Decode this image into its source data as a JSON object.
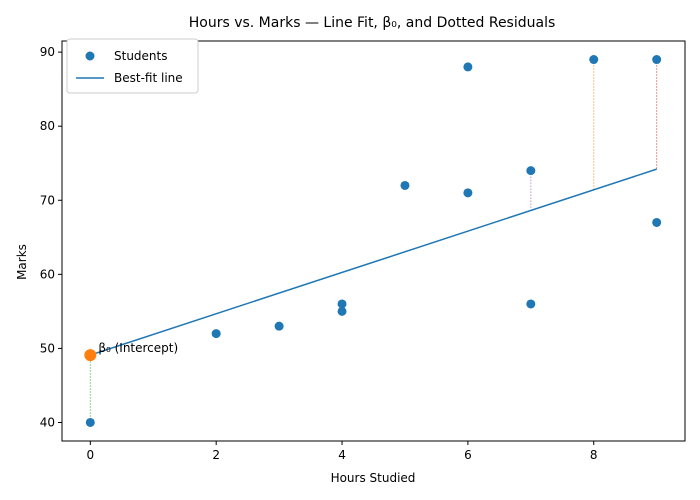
{
  "chart_data": {
    "type": "scatter",
    "title": "Hours vs. Marks — Line Fit, β₀, and Dotted Residuals",
    "xlabel": "Hours Studied",
    "ylabel": "Marks",
    "xlim": [
      -0.45,
      9.45
    ],
    "ylim": [
      37.5,
      91.5
    ],
    "xticks": [
      0,
      2,
      4,
      6,
      8
    ],
    "yticks": [
      40,
      50,
      60,
      70,
      80,
      90
    ],
    "grid": false,
    "legend_position": "top-left",
    "series": [
      {
        "name": "Students",
        "kind": "scatter",
        "color": "#1f77b4",
        "points": [
          {
            "x": 0,
            "y": 40
          },
          {
            "x": 2,
            "y": 52
          },
          {
            "x": 3,
            "y": 53
          },
          {
            "x": 4,
            "y": 56
          },
          {
            "x": 4,
            "y": 55
          },
          {
            "x": 5,
            "y": 72
          },
          {
            "x": 6,
            "y": 88
          },
          {
            "x": 6,
            "y": 71
          },
          {
            "x": 7,
            "y": 74
          },
          {
            "x": 7,
            "y": 56
          },
          {
            "x": 8,
            "y": 89
          },
          {
            "x": 9,
            "y": 89
          },
          {
            "x": 9,
            "y": 67
          }
        ]
      },
      {
        "name": "Best-fit line",
        "kind": "line",
        "color": "#1f77b4",
        "points": [
          {
            "x": 0,
            "y": 49.1
          },
          {
            "x": 9,
            "y": 74.2
          }
        ]
      }
    ],
    "residuals": [
      {
        "x": 0,
        "y_point": 40,
        "y_fit": 49.1,
        "color": "#2ca02c"
      },
      {
        "x": 7,
        "y_point": 74,
        "y_fit": 68.6,
        "color": "#9467bd"
      },
      {
        "x": 8,
        "y_point": 89,
        "y_fit": 71.4,
        "color": "#ff7f0e"
      },
      {
        "x": 9,
        "y_point": 89,
        "y_fit": 74.2,
        "color": "#d62728"
      }
    ],
    "intercept": {
      "x": 0,
      "y": 49.1,
      "label": "β₀ (Intercept)",
      "color": "#ff7f0e"
    }
  }
}
